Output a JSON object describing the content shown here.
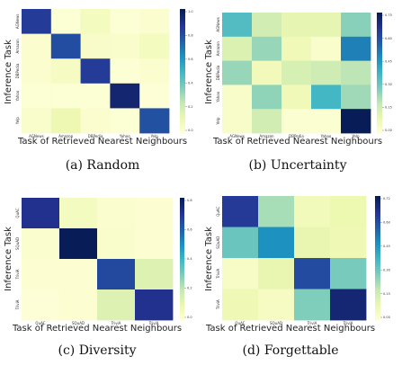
{
  "chart_data": [
    {
      "type": "heatmap",
      "caption": "(a) Random",
      "xlabel": "Task of Retrieved Nearest Neighbours",
      "ylabel": "Inference Task",
      "xticks": [
        "AGNews",
        "Amazon",
        "DBPedia",
        "Yahoo",
        "Yelp"
      ],
      "yticks": [
        "AGNews",
        "Amazon",
        "DBPedia",
        "Yahoo",
        "Yelp"
      ],
      "colorbar_ticks": [
        "1.0",
        "0.8",
        "0.6",
        "0.4",
        "0.2",
        "0.0"
      ],
      "zlim": [
        0,
        1.0
      ],
      "values": [
        [
          0.85,
          0.02,
          0.08,
          0.02,
          0.03
        ],
        [
          0.03,
          0.8,
          0.05,
          0.04,
          0.08
        ],
        [
          0.03,
          0.07,
          0.85,
          0.02,
          0.03
        ],
        [
          0.02,
          0.02,
          0.02,
          0.95,
          0.01
        ],
        [
          0.04,
          0.12,
          0.03,
          0.02,
          0.79
        ]
      ]
    },
    {
      "type": "heatmap",
      "caption": "(b) Uncertainty",
      "xlabel": "Task of Retrieved Nearest Neighbours",
      "ylabel": "Inference Task",
      "xticks": [
        "AGNews",
        "Amazon",
        "DBPedia",
        "Yahoo",
        "Yelp"
      ],
      "yticks": [
        "AGNews",
        "Amazon",
        "DBPedia",
        "Yahoo",
        "Yelp"
      ],
      "colorbar_ticks": [
        "0.75",
        "0.60",
        "0.45",
        "0.30",
        "0.15",
        "0.00"
      ],
      "zlim": [
        0,
        0.75
      ],
      "values": [
        [
          0.35,
          0.16,
          0.11,
          0.11,
          0.27
        ],
        [
          0.14,
          0.25,
          0.08,
          0.03,
          0.5
        ],
        [
          0.25,
          0.07,
          0.15,
          0.17,
          0.2
        ],
        [
          0.04,
          0.26,
          0.08,
          0.37,
          0.24
        ],
        [
          0.04,
          0.16,
          0.02,
          0.02,
          0.76
        ]
      ]
    },
    {
      "type": "heatmap",
      "caption": "(c) Diversity",
      "xlabel": "Task of Retrieved Nearest Neighbours",
      "ylabel": "Inference Task",
      "xticks": [
        "QuAC",
        "SQuAD",
        "TriviA",
        "TriviA"
      ],
      "yticks": [
        "QuAC",
        "SQuAD",
        "TriviA",
        "TriviA"
      ],
      "colorbar_ticks": [
        "0.8",
        "0.6",
        "0.4",
        "0.2",
        "0.0"
      ],
      "zlim": [
        0,
        0.9
      ],
      "values": [
        [
          0.8,
          0.07,
          0.03,
          0.02
        ],
        [
          0.03,
          0.9,
          0.04,
          0.02
        ],
        [
          0.02,
          0.02,
          0.73,
          0.16
        ],
        [
          0.01,
          0.02,
          0.16,
          0.8
        ]
      ]
    },
    {
      "type": "heatmap",
      "caption": "(d) Forgettable",
      "xlabel": "Task of Retrieved Nearest Neighbours",
      "ylabel": "Inference Task",
      "xticks": [
        "QuAC",
        "SQuAD",
        "TriviA",
        "TriviA"
      ],
      "yticks": [
        "QuAC",
        "SQuAD",
        "TriviA",
        "TriviA"
      ],
      "colorbar_ticks": [
        "0.72",
        "0.60",
        "0.45",
        "0.30",
        "0.15",
        "0.00"
      ],
      "zlim": [
        0,
        0.72
      ],
      "values": [
        [
          0.62,
          0.22,
          0.07,
          0.09
        ],
        [
          0.3,
          0.45,
          0.1,
          0.08
        ],
        [
          0.04,
          0.1,
          0.58,
          0.28
        ],
        [
          0.08,
          0.05,
          0.27,
          0.68
        ]
      ]
    }
  ]
}
